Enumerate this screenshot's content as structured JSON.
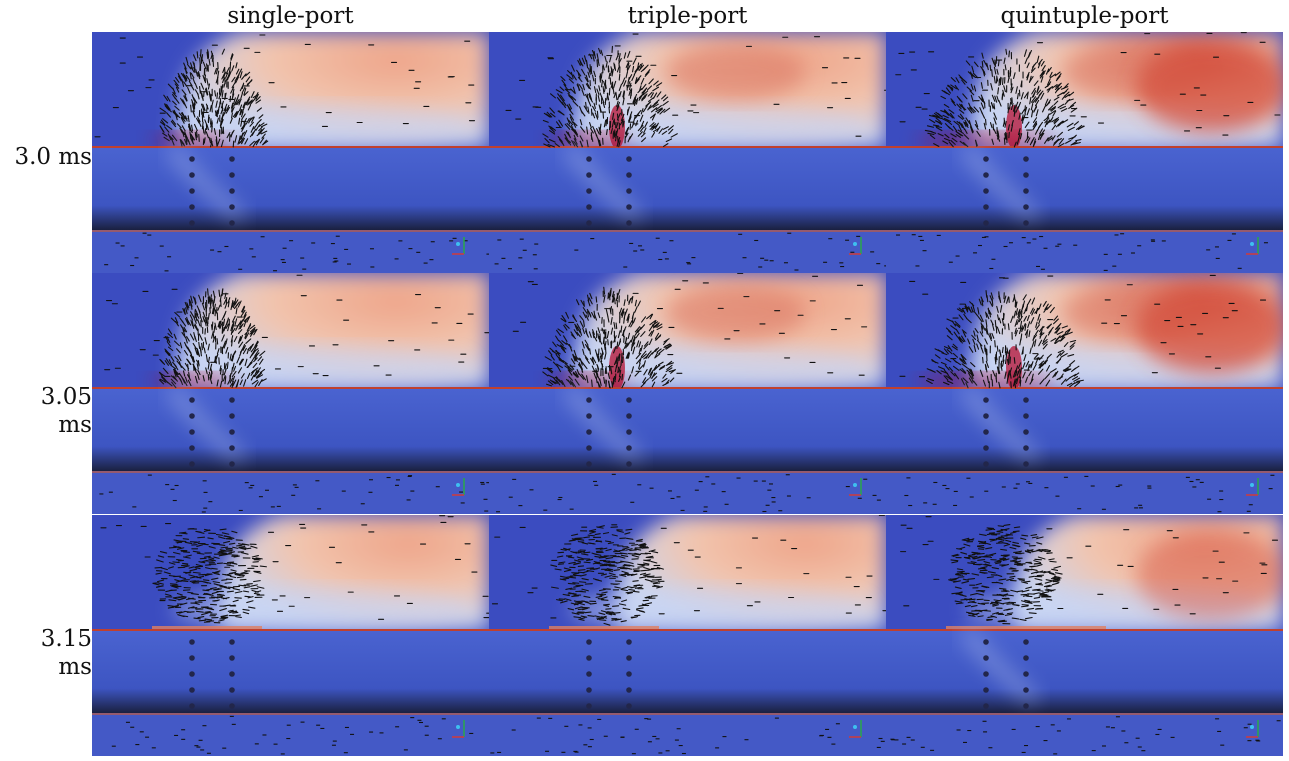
{
  "columns": [
    {
      "label": "single-port",
      "ports": 1
    },
    {
      "label": "triple-port",
      "ports": 3
    },
    {
      "label": "quintuple-port",
      "ports": 5
    }
  ],
  "rows": [
    {
      "label": "3.0 ms",
      "phase": "jet"
    },
    {
      "label": "3.05 ms",
      "phase": "jet"
    },
    {
      "label": "3.15 ms",
      "phase": "dispersed"
    }
  ],
  "colormap": {
    "low": "#3b4cc0",
    "mid": "#dddddd",
    "high": "#b40426",
    "wall_dark": "#1a2040",
    "vector": "#111111"
  }
}
